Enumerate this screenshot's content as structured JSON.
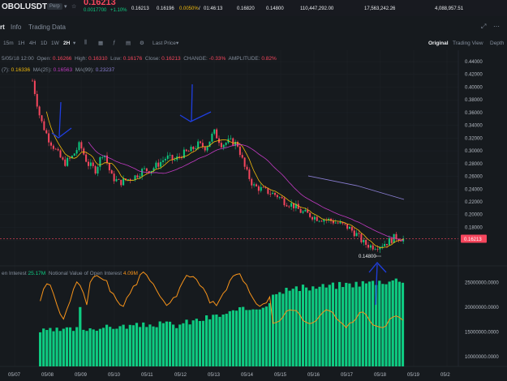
{
  "header": {
    "symbol": "OBOLUSDT",
    "badge": "Perp",
    "last_price": "0.16213",
    "change": "0.0017700",
    "change_pct": "+1.10%",
    "mark_price": "0.16213",
    "index_price": "0.16196",
    "funding": "0.0050%",
    "countdown": "01:46:13",
    "high_24h": "0.16820",
    "low_24h": "0.14800",
    "volume_base": "110,447,292.00",
    "volume_quote": "17,563,242.26",
    "open_interest": "4,088,957.51"
  },
  "tabs": {
    "chart": "rt",
    "info": "Info",
    "trading_data": "Trading Data"
  },
  "toolbar": {
    "intervals": [
      "15m",
      "1H",
      "4H",
      "1D",
      "1W",
      "2H"
    ],
    "active_interval": "2H",
    "last_price": "Last Price",
    "view_original": "Original",
    "view_tradingview": "Trading View",
    "view_depth": "Depth"
  },
  "ohlc": {
    "date": "5/05/18 12:00",
    "open_label": "Open:",
    "open": "0.16266",
    "high_label": "High:",
    "high": "0.16310",
    "low_label": "Low:",
    "low": "0.16176",
    "close_label": "Close:",
    "close": "0.16213",
    "change_label": "CHANGE:",
    "change": "-0.33%",
    "amp_label": "AMPLITUDE:",
    "amp": "0.82%",
    "ma7_label": "(7):",
    "ma7": "0.16336",
    "ma25_label": "MA(25):",
    "ma25": "0.16563",
    "ma99_label": "MA(99):",
    "ma99": "0.23237"
  },
  "oi": {
    "label1": "en Interest",
    "value1": "25.17M",
    "label2": "Notional Value of Open Interest",
    "value2": "4.09M"
  },
  "colors": {
    "up": "#0ecb81",
    "down": "#f6465d",
    "ma7": "#f0b90b",
    "ma25": "#c13ac1",
    "ma99": "#8b7fd4",
    "oi_line": "#f7931a",
    "drawing": "#1f3ee0"
  },
  "chart_data": [
    {
      "type": "candlestick",
      "price_axis_ticks": [
        "0.44000",
        "0.42000",
        "0.40000",
        "0.38000",
        "0.36000",
        "0.34000",
        "0.32000",
        "0.30000",
        "0.28000",
        "0.26000",
        "0.24000",
        "0.22000",
        "0.20000",
        "0.18000",
        "0.16000"
      ],
      "ylim": [
        0.145,
        0.44
      ],
      "current_price_label": "0.16213",
      "low_marker_label": "0.14800",
      "x_ticks": [
        "05/07",
        "05/08",
        "05/09",
        "05/10",
        "05/11",
        "05/12",
        "05/13",
        "05/14",
        "05/15",
        "05/16",
        "05/17",
        "05/18",
        "05/19",
        "05/2"
      ],
      "close_path": [
        0.41,
        0.35,
        0.32,
        0.3,
        0.28,
        0.29,
        0.31,
        0.28,
        0.27,
        0.3,
        0.26,
        0.25,
        0.255,
        0.26,
        0.27,
        0.27,
        0.28,
        0.29,
        0.285,
        0.295,
        0.3,
        0.31,
        0.305,
        0.33,
        0.31,
        0.315,
        0.31,
        0.27,
        0.245,
        0.24,
        0.235,
        0.23,
        0.22,
        0.215,
        0.205,
        0.2,
        0.195,
        0.193,
        0.19,
        0.185,
        0.18,
        0.17,
        0.155,
        0.15,
        0.152,
        0.157,
        0.165,
        0.162
      ]
    },
    {
      "type": "bar",
      "name_bars": "en Interest",
      "name_line": "Notional Value of Open Interest",
      "y_axis_ticks": [
        "25000000.0000",
        "20000000.0000",
        "15000000.0000",
        "10000000.0000"
      ],
      "ylim": [
        8000000,
        28000000
      ]
    }
  ]
}
